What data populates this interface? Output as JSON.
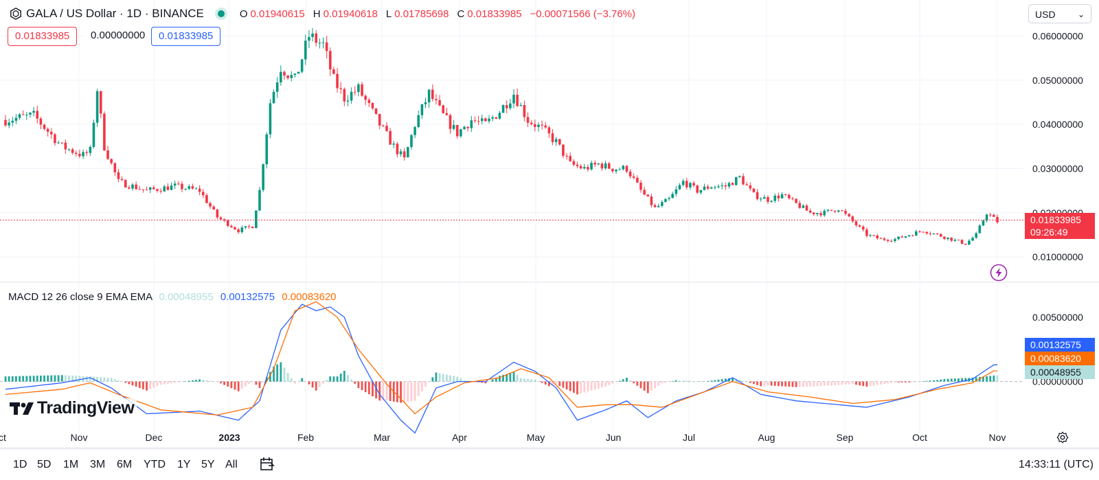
{
  "header": {
    "title": "GALA / US Dollar · 1D · BINANCE",
    "ohlc": [
      {
        "k": "O",
        "v": "0.01940615"
      },
      {
        "k": "H",
        "v": "0.01940618"
      },
      {
        "k": "L",
        "v": "0.01785698"
      },
      {
        "k": "C",
        "v": "0.01833985"
      }
    ],
    "change": "−0.00071566 (−3.76%)"
  },
  "price_boxes": {
    "sell": "0.01833985",
    "spread": "0.00000000",
    "buy": "0.01833985"
  },
  "currency_select": "USD",
  "price_axis": {
    "ticks": [
      "0.06000000",
      "0.05000000",
      "0.04000000",
      "0.03000000",
      "0.02000000",
      "0.01000000"
    ],
    "last_price": "0.01833985",
    "countdown": "09:26:49"
  },
  "macd": {
    "label": "MACD 12 26 close 9 EMA EMA",
    "hist": "0.00048955",
    "macd": "0.00132575",
    "signal": "0.00083620",
    "tick": "0.00500000",
    "zero_tick": "0.00000000"
  },
  "time_axis": [
    "ct",
    "Nov",
    "Dec",
    "2023",
    "Feb",
    "Mar",
    "Apr",
    "May",
    "Jun",
    "Jul",
    "Aug",
    "Sep",
    "Oct",
    "Nov"
  ],
  "brand": "TradingView",
  "range_buttons": [
    "1D",
    "5D",
    "1M",
    "3M",
    "6M",
    "YTD",
    "1Y",
    "5Y",
    "All"
  ],
  "clock": "14:33:11 (UTC)",
  "colors": {
    "up": "#089981",
    "down": "#f23645",
    "macd_line": "#2962ff",
    "signal_line": "#ff6d00",
    "hist_up": "#26a69a",
    "hist_down": "#ef5350"
  },
  "chart_data": {
    "type": "candlestick",
    "series_price": [
      [
        0,
        0.041
      ],
      [
        8,
        0.042
      ],
      [
        16,
        0.035
      ],
      [
        22,
        0.033
      ],
      [
        24,
        0.034
      ],
      [
        26,
        0.048
      ],
      [
        28,
        0.035
      ],
      [
        32,
        0.027
      ],
      [
        40,
        0.025
      ],
      [
        48,
        0.026
      ],
      [
        55,
        0.025
      ],
      [
        60,
        0.019
      ],
      [
        66,
        0.016
      ],
      [
        70,
        0.017
      ],
      [
        72,
        0.025
      ],
      [
        75,
        0.045
      ],
      [
        78,
        0.053
      ],
      [
        82,
        0.05
      ],
      [
        86,
        0.06
      ],
      [
        90,
        0.058
      ],
      [
        93,
        0.05
      ],
      [
        96,
        0.046
      ],
      [
        100,
        0.048
      ],
      [
        106,
        0.04
      ],
      [
        110,
        0.035
      ],
      [
        113,
        0.032
      ],
      [
        116,
        0.04
      ],
      [
        120,
        0.047
      ],
      [
        124,
        0.042
      ],
      [
        128,
        0.038
      ],
      [
        132,
        0.041
      ],
      [
        136,
        0.04
      ],
      [
        140,
        0.043
      ],
      [
        144,
        0.047
      ],
      [
        148,
        0.041
      ],
      [
        152,
        0.039
      ],
      [
        156,
        0.036
      ],
      [
        160,
        0.031
      ],
      [
        164,
        0.03
      ],
      [
        168,
        0.031
      ],
      [
        172,
        0.03
      ],
      [
        176,
        0.03
      ],
      [
        180,
        0.025
      ],
      [
        184,
        0.021
      ],
      [
        188,
        0.023
      ],
      [
        192,
        0.027
      ],
      [
        196,
        0.025
      ],
      [
        200,
        0.026
      ],
      [
        204,
        0.026
      ],
      [
        208,
        0.028
      ],
      [
        212,
        0.024
      ],
      [
        216,
        0.023
      ],
      [
        220,
        0.024
      ],
      [
        224,
        0.022
      ],
      [
        228,
        0.02
      ],
      [
        232,
        0.02
      ],
      [
        236,
        0.021
      ],
      [
        240,
        0.018
      ],
      [
        244,
        0.015
      ],
      [
        248,
        0.014
      ],
      [
        252,
        0.014
      ],
      [
        256,
        0.015
      ],
      [
        260,
        0.016
      ],
      [
        264,
        0.015
      ],
      [
        268,
        0.014
      ],
      [
        272,
        0.013
      ],
      [
        275,
        0.015
      ],
      [
        278,
        0.02
      ],
      [
        281,
        0.018
      ]
    ],
    "macd_line": [
      [
        0,
        -0.0006
      ],
      [
        16,
        -0.0001
      ],
      [
        24,
        0.0003
      ],
      [
        30,
        -0.0005
      ],
      [
        40,
        -0.0025
      ],
      [
        55,
        -0.0023
      ],
      [
        66,
        -0.003
      ],
      [
        72,
        -0.0015
      ],
      [
        78,
        0.004
      ],
      [
        84,
        0.006
      ],
      [
        88,
        0.0055
      ],
      [
        92,
        0.0058
      ],
      [
        96,
        0.005
      ],
      [
        100,
        0.002
      ],
      [
        106,
        -0.001
      ],
      [
        112,
        -0.003
      ],
      [
        116,
        -0.004
      ],
      [
        122,
        -0.0005
      ],
      [
        128,
        0.0
      ],
      [
        136,
        0.0
      ],
      [
        144,
        0.0015
      ],
      [
        150,
        0.0008
      ],
      [
        156,
        -0.0005
      ],
      [
        162,
        -0.003
      ],
      [
        170,
        -0.0022
      ],
      [
        176,
        -0.0015
      ],
      [
        182,
        -0.0028
      ],
      [
        190,
        -0.0015
      ],
      [
        198,
        -0.0008
      ],
      [
        206,
        0.0003
      ],
      [
        214,
        -0.001
      ],
      [
        224,
        -0.0015
      ],
      [
        236,
        -0.0018
      ],
      [
        244,
        -0.002
      ],
      [
        256,
        -0.0012
      ],
      [
        266,
        -0.0003
      ],
      [
        274,
        0.0002
      ],
      [
        280,
        0.0013
      ]
    ],
    "signal_line": [
      [
        0,
        -0.001
      ],
      [
        16,
        -0.0006
      ],
      [
        24,
        -0.0001
      ],
      [
        32,
        -0.001
      ],
      [
        44,
        -0.0022
      ],
      [
        60,
        -0.0026
      ],
      [
        70,
        -0.002
      ],
      [
        76,
        0.001
      ],
      [
        82,
        0.0055
      ],
      [
        88,
        0.0062
      ],
      [
        94,
        0.005
      ],
      [
        100,
        0.0025
      ],
      [
        108,
        -0.0002
      ],
      [
        116,
        -0.0025
      ],
      [
        122,
        -0.0012
      ],
      [
        130,
        -0.0001
      ],
      [
        140,
        0.0003
      ],
      [
        146,
        0.001
      ],
      [
        154,
        0.0003
      ],
      [
        162,
        -0.002
      ],
      [
        170,
        -0.0018
      ],
      [
        178,
        -0.0018
      ],
      [
        186,
        -0.002
      ],
      [
        196,
        -0.001
      ],
      [
        206,
        0.0
      ],
      [
        216,
        -0.0008
      ],
      [
        228,
        -0.0012
      ],
      [
        240,
        -0.0017
      ],
      [
        252,
        -0.0014
      ],
      [
        264,
        -0.0006
      ],
      [
        274,
        -0.0001
      ],
      [
        280,
        0.00083
      ]
    ],
    "price_ylim": [
      0.0052,
      0.0635
    ],
    "macd_ylim": [
      -0.0045,
      0.0075
    ]
  }
}
